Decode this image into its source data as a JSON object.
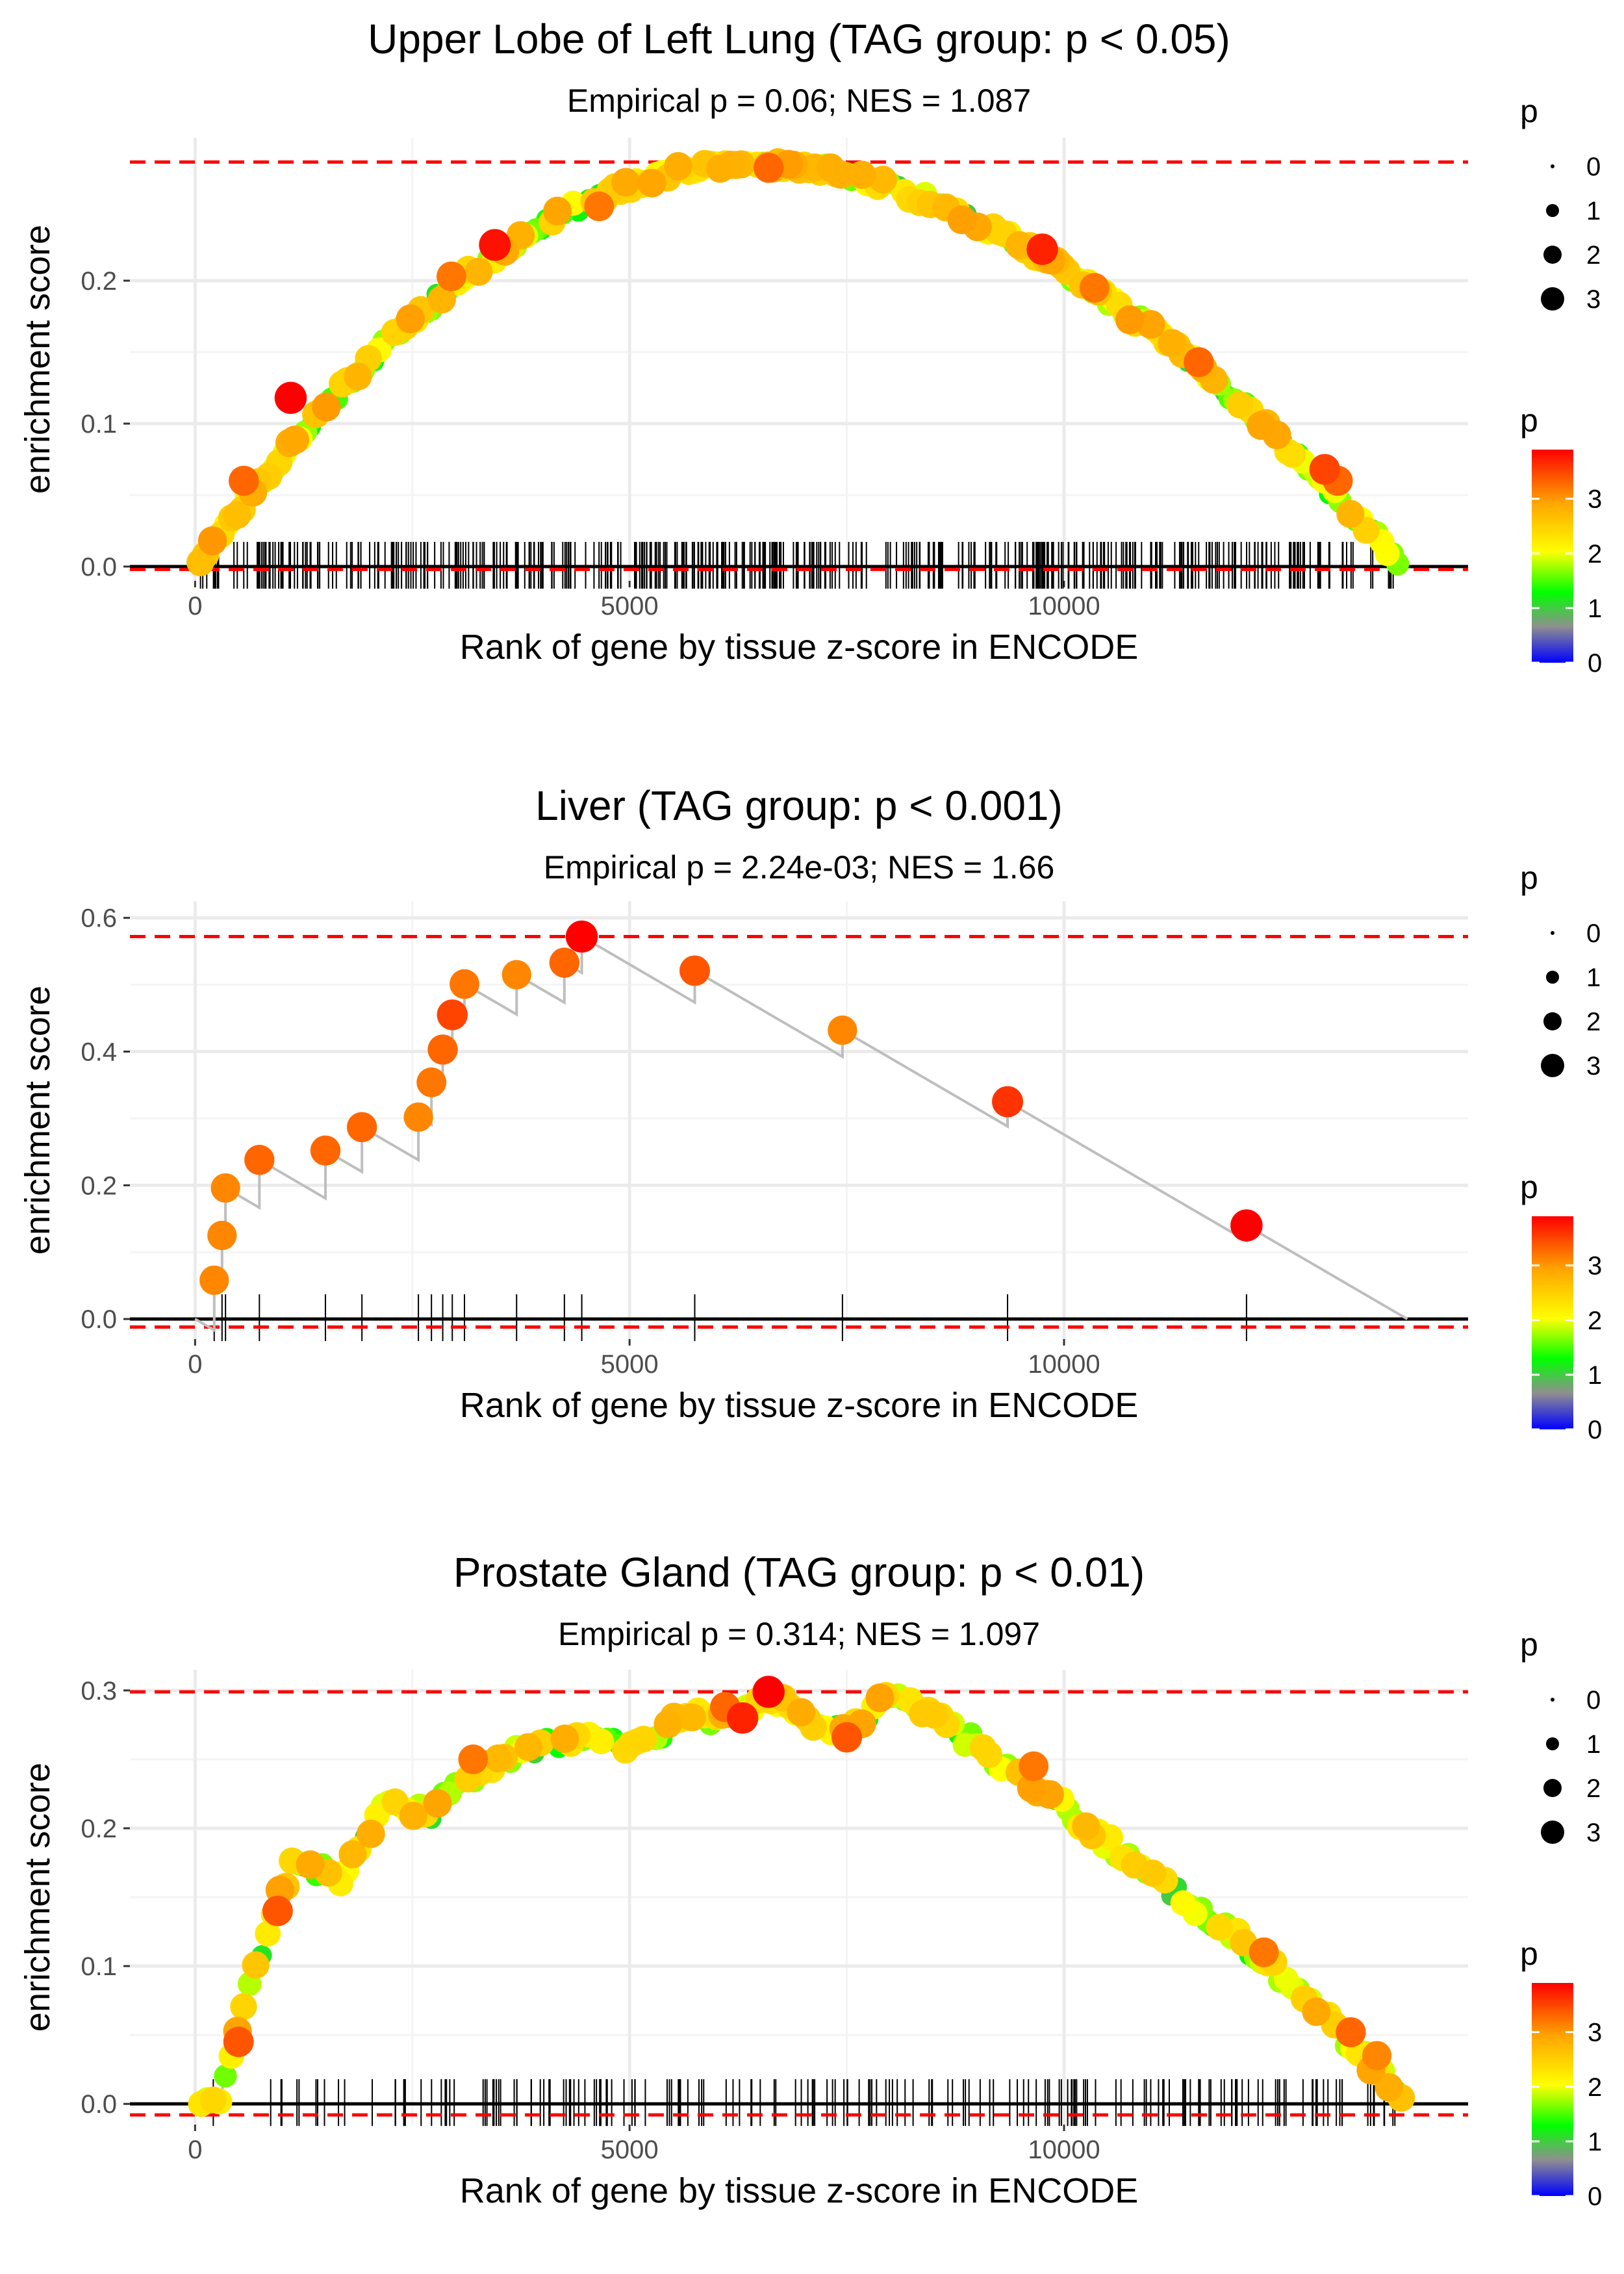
{
  "colors": {
    "grid": "#ebebeb",
    "threshold_line": "#ff0000",
    "zero_line": "#000000",
    "curve": "#bebebe",
    "gradient": [
      "#0000ff",
      "#8f8f8f",
      "#00ff00",
      "#ffff00",
      "#ffa500",
      "#ff0000"
    ]
  },
  "chart_data": [
    {
      "type": "scatter",
      "name": "lung",
      "title": "Upper Lobe of Left Lung (TAG group: p < 0.05)",
      "subtitle": "Empirical p = 0.06; NES = 1.087",
      "xlabel": "Rank of gene by tissue z-score in ENCODE",
      "ylabel": "enrichment score",
      "xlim": [
        -750,
        14650
      ],
      "ylim": [
        -0.01,
        0.3
      ],
      "xticks": [
        0,
        5000,
        10000
      ],
      "xtick_labels": [
        "0",
        "5000",
        "10000"
      ],
      "yticks": [
        0.0,
        0.1,
        0.2
      ],
      "ytick_labels": [
        "0.0",
        "0.1",
        "0.2"
      ],
      "max_es": 0.283,
      "min_es": -0.002,
      "curve": {
        "shape": "arc",
        "x_start": 0,
        "x_peak": 6400,
        "x_end": 13900,
        "peak": 0.283,
        "n_points": 230,
        "noise": 0.004
      },
      "rug": {
        "mode": "dense",
        "x_start": 30,
        "x_end": 13800,
        "count": 430
      },
      "highlight_points": [
        {
          "x": 1100,
          "y": 0.118,
          "p": 3.9
        },
        {
          "x": 3450,
          "y": 0.225,
          "p": 3.8
        },
        {
          "x": 2950,
          "y": 0.203,
          "p": 3.2
        },
        {
          "x": 4650,
          "y": 0.252,
          "p": 3.2
        },
        {
          "x": 6600,
          "y": 0.279,
          "p": 3.3
        },
        {
          "x": 9750,
          "y": 0.222,
          "p": 3.7
        },
        {
          "x": 10350,
          "y": 0.195,
          "p": 3.2
        },
        {
          "x": 11550,
          "y": 0.143,
          "p": 3.3
        },
        {
          "x": 13000,
          "y": 0.068,
          "p": 3.5
        },
        {
          "x": 13150,
          "y": 0.06,
          "p": 3.3
        },
        {
          "x": 560,
          "y": 0.06,
          "p": 3.3
        },
        {
          "x": 200,
          "y": 0.018,
          "p": 3.0
        }
      ],
      "legend_size": {
        "title": "p",
        "labels": [
          "0",
          "1",
          "2",
          "3"
        ]
      },
      "legend_color": {
        "title": "p",
        "labels": [
          "0",
          "1",
          "2",
          "3"
        ]
      }
    },
    {
      "type": "scatter",
      "name": "liver",
      "title": "Liver (TAG group: p < 0.001)",
      "subtitle": "Empirical p = 2.24e-03; NES = 1.66",
      "xlabel": "Rank of gene by tissue z-score in ENCODE",
      "ylabel": "enrichment score",
      "xlim": [
        -750,
        14650
      ],
      "ylim": [
        -0.03,
        0.625
      ],
      "xticks": [
        0,
        5000,
        10000
      ],
      "xtick_labels": [
        "0",
        "5000",
        "10000"
      ],
      "yticks": [
        0.0,
        0.2,
        0.4,
        0.6
      ],
      "ytick_labels": [
        "0.0",
        "0.2",
        "0.4",
        "0.6"
      ],
      "max_es": 0.572,
      "min_es": -0.012,
      "genes": [
        {
          "x": 220,
          "y": 0.058,
          "p": 3.1
        },
        {
          "x": 310,
          "y": 0.125,
          "p": 3.1
        },
        {
          "x": 350,
          "y": 0.196,
          "p": 3.1
        },
        {
          "x": 740,
          "y": 0.238,
          "p": 3.3
        },
        {
          "x": 1500,
          "y": 0.252,
          "p": 3.3
        },
        {
          "x": 1920,
          "y": 0.287,
          "p": 3.3
        },
        {
          "x": 2570,
          "y": 0.302,
          "p": 3.1
        },
        {
          "x": 2720,
          "y": 0.354,
          "p": 3.2
        },
        {
          "x": 2850,
          "y": 0.403,
          "p": 3.3
        },
        {
          "x": 2960,
          "y": 0.455,
          "p": 3.5
        },
        {
          "x": 3100,
          "y": 0.501,
          "p": 3.2
        },
        {
          "x": 3700,
          "y": 0.515,
          "p": 3.1
        },
        {
          "x": 4250,
          "y": 0.533,
          "p": 3.3
        },
        {
          "x": 4450,
          "y": 0.572,
          "p": 3.9
        },
        {
          "x": 5750,
          "y": 0.521,
          "p": 3.4
        },
        {
          "x": 7450,
          "y": 0.432,
          "p": 3.1
        },
        {
          "x": 9350,
          "y": 0.325,
          "p": 3.6
        },
        {
          "x": 12100,
          "y": 0.14,
          "p": 3.9
        }
      ],
      "step_start": {
        "x": 0,
        "y": 0.0
      },
      "x_end": 13950,
      "rug": {
        "mode": "genes"
      },
      "legend_size": {
        "title": "p",
        "labels": [
          "0",
          "1",
          "2",
          "3"
        ]
      },
      "legend_color": {
        "title": "p",
        "labels": [
          "0",
          "1",
          "2",
          "3"
        ]
      }
    },
    {
      "type": "scatter",
      "name": "prostate",
      "title": "Prostate Gland (TAG group: p < 0.01)",
      "subtitle": "Empirical p = 0.314; NES = 1.097",
      "xlabel": "Rank of gene by tissue z-score in ENCODE",
      "ylabel": "enrichment score",
      "xlim": [
        -750,
        14650
      ],
      "ylim": [
        -0.015,
        0.315
      ],
      "xticks": [
        0,
        5000,
        10000
      ],
      "xtick_labels": [
        "0",
        "5000",
        "10000"
      ],
      "yticks": [
        0.0,
        0.1,
        0.2,
        0.3
      ],
      "ytick_labels": [
        "0.0",
        "0.1",
        "0.2",
        "0.3"
      ],
      "max_es": 0.299,
      "min_es": -0.008,
      "curve": {
        "shape": "keys",
        "n_points": 200,
        "noise": 0.006,
        "keys": [
          [
            0,
            0.0
          ],
          [
            250,
            0.0
          ],
          [
            450,
            0.04
          ],
          [
            650,
            0.09
          ],
          [
            950,
            0.15
          ],
          [
            1150,
            0.175
          ],
          [
            1700,
            0.165
          ],
          [
            2200,
            0.215
          ],
          [
            2700,
            0.21
          ],
          [
            3300,
            0.245
          ],
          [
            4100,
            0.265
          ],
          [
            5000,
            0.26
          ],
          [
            5600,
            0.278
          ],
          [
            6200,
            0.285
          ],
          [
            6600,
            0.298
          ],
          [
            7000,
            0.28
          ],
          [
            7450,
            0.27
          ],
          [
            8000,
            0.298
          ],
          [
            8500,
            0.28
          ],
          [
            9000,
            0.26
          ],
          [
            10000,
            0.215
          ],
          [
            11000,
            0.165
          ],
          [
            12000,
            0.12
          ],
          [
            13000,
            0.065
          ],
          [
            13950,
            0.0
          ]
        ]
      },
      "rug": {
        "mode": "sparse",
        "x_start": 200,
        "x_end": 13850,
        "count": 190
      },
      "highlight_points": [
        {
          "x": 6600,
          "y": 0.299,
          "p": 3.9
        },
        {
          "x": 6300,
          "y": 0.28,
          "p": 3.7
        },
        {
          "x": 7500,
          "y": 0.266,
          "p": 3.4
        },
        {
          "x": 6100,
          "y": 0.288,
          "p": 3.3
        },
        {
          "x": 9650,
          "y": 0.245,
          "p": 3.2
        },
        {
          "x": 13300,
          "y": 0.052,
          "p": 3.3
        },
        {
          "x": 13600,
          "y": 0.035,
          "p": 3.1
        },
        {
          "x": 950,
          "y": 0.14,
          "p": 3.4
        },
        {
          "x": 500,
          "y": 0.045,
          "p": 3.4
        },
        {
          "x": 3200,
          "y": 0.25,
          "p": 3.2
        },
        {
          "x": 12300,
          "y": 0.11,
          "p": 3.2
        }
      ],
      "legend_size": {
        "title": "p",
        "labels": [
          "0",
          "1",
          "2",
          "3"
        ]
      },
      "legend_color": {
        "title": "p",
        "labels": [
          "0",
          "1",
          "2",
          "3"
        ]
      }
    }
  ]
}
